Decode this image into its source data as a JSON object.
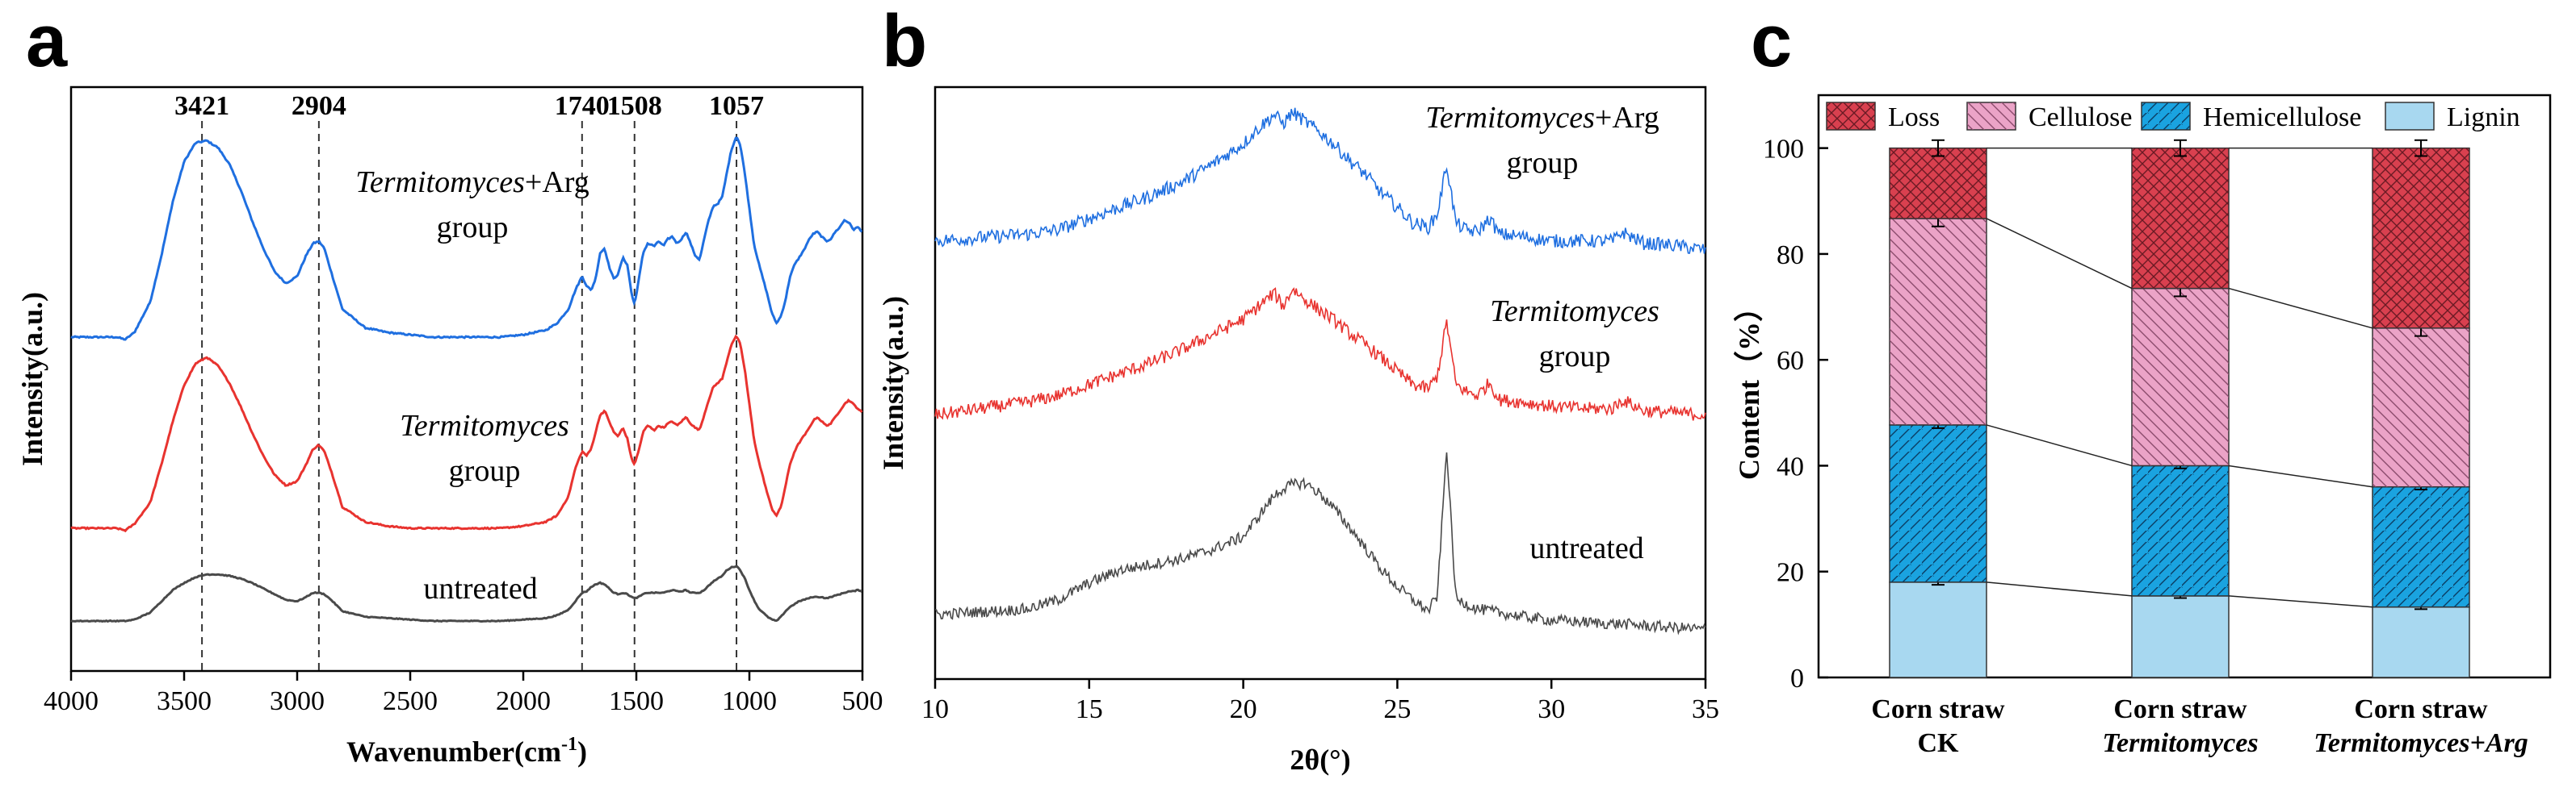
{
  "chart_data": [
    {
      "panel": "a",
      "type": "line",
      "xlabel": "Wavenumber(cm",
      "xlabel_sup": "-1",
      "xlabel_end": ")",
      "ylabel": "Intensity(a.u.)",
      "xlim": [
        4000,
        500
      ],
      "xticks": [
        4000,
        3500,
        3000,
        2500,
        2000,
        1500,
        1000,
        500
      ],
      "peaks": [
        3421,
        2904,
        1740,
        1508,
        1057
      ],
      "peak_labels": [
        "3421",
        "2904",
        "1740",
        "1508",
        "1057"
      ],
      "series": [
        {
          "name": "Termitomyces+Arg group",
          "label_italic": "Termitomyces",
          "label_rest": "+Arg",
          "label_line2": "group",
          "color": "#1f6fe0",
          "x": [
            4000,
            3900,
            3800,
            3760,
            3720,
            3650,
            3600,
            3550,
            3500,
            3450,
            3400,
            3350,
            3300,
            3250,
            3200,
            3150,
            3100,
            3050,
            3000,
            2960,
            2930,
            2904,
            2880,
            2850,
            2800,
            2700,
            2600,
            2500,
            2400,
            2300,
            2200,
            2100,
            2000,
            1900,
            1850,
            1800,
            1770,
            1740,
            1720,
            1700,
            1680,
            1660,
            1640,
            1620,
            1600,
            1580,
            1560,
            1540,
            1520,
            1508,
            1490,
            1470,
            1450,
            1420,
            1400,
            1380,
            1360,
            1340,
            1320,
            1300,
            1280,
            1260,
            1240,
            1220,
            1200,
            1180,
            1160,
            1140,
            1120,
            1100,
            1080,
            1057,
            1040,
            1020,
            1000,
            980,
            960,
            940,
            920,
            900,
            880,
            860,
            840,
            820,
            800,
            780,
            760,
            740,
            720,
            700,
            680,
            660,
            640,
            620,
            600,
            580,
            560,
            540,
            520,
            500
          ],
          "y": [
            0.0,
            0.0,
            0.0,
            -0.01,
            0.02,
            0.15,
            0.35,
            0.58,
            0.75,
            0.83,
            0.84,
            0.81,
            0.74,
            0.63,
            0.5,
            0.38,
            0.28,
            0.23,
            0.26,
            0.35,
            0.4,
            0.41,
            0.38,
            0.28,
            0.12,
            0.04,
            0.02,
            0.01,
            0.0,
            0.0,
            0.0,
            0.0,
            0.01,
            0.03,
            0.06,
            0.12,
            0.2,
            0.26,
            0.22,
            0.2,
            0.25,
            0.36,
            0.38,
            0.3,
            0.25,
            0.27,
            0.34,
            0.31,
            0.18,
            0.14,
            0.24,
            0.36,
            0.4,
            0.39,
            0.41,
            0.39,
            0.42,
            0.43,
            0.4,
            0.42,
            0.45,
            0.4,
            0.35,
            0.33,
            0.42,
            0.5,
            0.56,
            0.57,
            0.6,
            0.7,
            0.8,
            0.86,
            0.82,
            0.7,
            0.55,
            0.4,
            0.32,
            0.25,
            0.18,
            0.1,
            0.06,
            0.09,
            0.16,
            0.26,
            0.31,
            0.34,
            0.37,
            0.41,
            0.44,
            0.45,
            0.43,
            0.41,
            0.42,
            0.45,
            0.47,
            0.5,
            0.49,
            0.46,
            0.47,
            0.45
          ]
        },
        {
          "name": "Termitomyces group",
          "label_italic": "Termitomyces",
          "label_rest": "",
          "label_line2": "group",
          "color": "#e8332f",
          "x": [
            4000,
            3900,
            3800,
            3760,
            3720,
            3650,
            3600,
            3550,
            3500,
            3450,
            3400,
            3350,
            3300,
            3250,
            3200,
            3150,
            3100,
            3050,
            3000,
            2960,
            2930,
            2904,
            2880,
            2850,
            2800,
            2700,
            2600,
            2500,
            2400,
            2300,
            2200,
            2100,
            2000,
            1900,
            1850,
            1800,
            1770,
            1740,
            1720,
            1700,
            1680,
            1660,
            1640,
            1620,
            1600,
            1580,
            1560,
            1540,
            1520,
            1508,
            1490,
            1470,
            1450,
            1420,
            1400,
            1380,
            1360,
            1340,
            1320,
            1300,
            1280,
            1260,
            1240,
            1220,
            1200,
            1180,
            1160,
            1140,
            1120,
            1100,
            1080,
            1057,
            1040,
            1020,
            1000,
            980,
            960,
            940,
            920,
            900,
            880,
            860,
            840,
            820,
            800,
            780,
            760,
            740,
            720,
            700,
            680,
            660,
            640,
            620,
            600,
            580,
            560,
            540,
            520,
            500
          ],
          "y": [
            0.0,
            0.0,
            0.0,
            -0.01,
            0.02,
            0.12,
            0.3,
            0.5,
            0.67,
            0.77,
            0.8,
            0.76,
            0.68,
            0.57,
            0.45,
            0.34,
            0.25,
            0.2,
            0.22,
            0.3,
            0.37,
            0.39,
            0.36,
            0.27,
            0.1,
            0.03,
            0.01,
            0.0,
            0.0,
            0.0,
            0.0,
            0.0,
            0.01,
            0.03,
            0.06,
            0.15,
            0.28,
            0.36,
            0.34,
            0.37,
            0.45,
            0.53,
            0.55,
            0.5,
            0.45,
            0.43,
            0.47,
            0.42,
            0.32,
            0.3,
            0.36,
            0.45,
            0.48,
            0.46,
            0.48,
            0.47,
            0.49,
            0.5,
            0.48,
            0.5,
            0.52,
            0.49,
            0.47,
            0.46,
            0.53,
            0.6,
            0.66,
            0.68,
            0.7,
            0.78,
            0.86,
            0.9,
            0.86,
            0.74,
            0.58,
            0.42,
            0.32,
            0.24,
            0.16,
            0.09,
            0.06,
            0.1,
            0.2,
            0.3,
            0.36,
            0.4,
            0.43,
            0.46,
            0.5,
            0.52,
            0.5,
            0.48,
            0.49,
            0.52,
            0.55,
            0.58,
            0.6,
            0.58,
            0.56,
            0.54
          ]
        },
        {
          "name": "untreated",
          "label_italic": "",
          "label_rest": "untreated",
          "label_line2": "",
          "color": "#4a4a4a",
          "x": [
            4000,
            3900,
            3800,
            3760,
            3720,
            3650,
            3600,
            3550,
            3500,
            3450,
            3400,
            3350,
            3300,
            3250,
            3200,
            3150,
            3100,
            3050,
            3000,
            2960,
            2930,
            2904,
            2880,
            2850,
            2800,
            2700,
            2600,
            2500,
            2400,
            2300,
            2200,
            2100,
            2000,
            1900,
            1850,
            1800,
            1770,
            1740,
            1720,
            1700,
            1680,
            1660,
            1640,
            1620,
            1600,
            1580,
            1560,
            1540,
            1520,
            1508,
            1490,
            1470,
            1450,
            1420,
            1400,
            1380,
            1360,
            1340,
            1320,
            1300,
            1280,
            1260,
            1240,
            1220,
            1200,
            1180,
            1160,
            1140,
            1120,
            1100,
            1080,
            1057,
            1040,
            1020,
            1000,
            980,
            960,
            940,
            920,
            900,
            880,
            860,
            840,
            820,
            800,
            780,
            760,
            740,
            720,
            700,
            680,
            660,
            640,
            620,
            600,
            580,
            560,
            540,
            520,
            500
          ],
          "y": [
            0.0,
            0.0,
            0.0,
            0.0,
            0.01,
            0.06,
            0.14,
            0.22,
            0.27,
            0.31,
            0.33,
            0.33,
            0.32,
            0.3,
            0.27,
            0.23,
            0.19,
            0.15,
            0.14,
            0.17,
            0.2,
            0.2,
            0.19,
            0.15,
            0.07,
            0.03,
            0.02,
            0.01,
            0.0,
            0.0,
            0.0,
            0.0,
            0.01,
            0.02,
            0.04,
            0.08,
            0.14,
            0.2,
            0.21,
            0.24,
            0.26,
            0.27,
            0.26,
            0.23,
            0.2,
            0.19,
            0.2,
            0.19,
            0.17,
            0.16,
            0.17,
            0.19,
            0.2,
            0.2,
            0.2,
            0.2,
            0.21,
            0.22,
            0.21,
            0.21,
            0.22,
            0.2,
            0.2,
            0.2,
            0.22,
            0.25,
            0.28,
            0.3,
            0.32,
            0.36,
            0.38,
            0.39,
            0.36,
            0.3,
            0.22,
            0.15,
            0.09,
            0.06,
            0.03,
            0.01,
            0.0,
            0.03,
            0.07,
            0.1,
            0.12,
            0.14,
            0.15,
            0.16,
            0.17,
            0.17,
            0.17,
            0.16,
            0.17,
            0.18,
            0.19,
            0.2,
            0.21,
            0.21,
            0.22,
            0.21
          ]
        }
      ]
    },
    {
      "panel": "b",
      "type": "line",
      "xlabel": "2θ(°)",
      "ylabel": "Intensity(a.u.)",
      "xlim": [
        10,
        35
      ],
      "xticks": [
        10,
        15,
        20,
        25,
        30,
        35
      ],
      "series": [
        {
          "name": "Termitomyces+Arg group",
          "label_italic": "Termitomyces",
          "label_rest": "+Arg",
          "label_line2": "group",
          "color": "#1f6fe0",
          "x": [
            10,
            11,
            12,
            13,
            14,
            15,
            16,
            17,
            18,
            19,
            20,
            20.5,
            21,
            21.3,
            21.6,
            22,
            22.5,
            23,
            23.5,
            24,
            24.5,
            25,
            25.5,
            26,
            26.3,
            26.6,
            26.9,
            27.2,
            27.6,
            28,
            28.3,
            29,
            30,
            31,
            32,
            32.3,
            33,
            34,
            35
          ],
          "y": [
            0.04,
            0.05,
            0.06,
            0.07,
            0.09,
            0.14,
            0.19,
            0.24,
            0.3,
            0.38,
            0.47,
            0.54,
            0.6,
            0.56,
            0.61,
            0.57,
            0.52,
            0.46,
            0.39,
            0.33,
            0.25,
            0.19,
            0.12,
            0.1,
            0.16,
            0.38,
            0.12,
            0.09,
            0.08,
            0.14,
            0.07,
            0.06,
            0.04,
            0.04,
            0.04,
            0.08,
            0.03,
            0.02,
            0.0
          ]
        },
        {
          "name": "Termitomyces group",
          "label_italic": "Termitomyces",
          "label_rest": "",
          "label_line2": "group",
          "color": "#e8332f",
          "x": [
            10,
            11,
            12,
            13,
            14,
            15,
            16,
            17,
            18,
            19,
            20,
            20.5,
            21,
            21.3,
            21.6,
            22,
            22.5,
            23,
            23.5,
            24,
            24.5,
            25,
            25.5,
            26,
            26.3,
            26.6,
            26.9,
            27.2,
            27.6,
            28,
            28.3,
            29,
            30,
            31,
            32,
            32.3,
            33,
            34,
            35
          ],
          "y": [
            0.02,
            0.04,
            0.06,
            0.08,
            0.11,
            0.16,
            0.21,
            0.26,
            0.32,
            0.39,
            0.46,
            0.52,
            0.58,
            0.52,
            0.6,
            0.55,
            0.5,
            0.45,
            0.39,
            0.34,
            0.28,
            0.22,
            0.16,
            0.14,
            0.2,
            0.45,
            0.16,
            0.13,
            0.11,
            0.17,
            0.09,
            0.08,
            0.06,
            0.05,
            0.05,
            0.09,
            0.04,
            0.03,
            0.02
          ]
        },
        {
          "name": "untreated",
          "label_italic": "",
          "label_rest": "untreated",
          "label_line2": "",
          "color": "#4a4a4a",
          "x": [
            10,
            11,
            12,
            13,
            14,
            15,
            16,
            17,
            18,
            19,
            20,
            20.5,
            21,
            21.3,
            21.6,
            22,
            22.5,
            23,
            23.5,
            24,
            24.5,
            25,
            25.5,
            26,
            26.3,
            26.6,
            26.9,
            27.2,
            27.6,
            28,
            28.3,
            29,
            30,
            31,
            32,
            32.3,
            33,
            34,
            35
          ],
          "y": [
            0.1,
            0.11,
            0.12,
            0.13,
            0.18,
            0.27,
            0.34,
            0.37,
            0.4,
            0.45,
            0.52,
            0.63,
            0.74,
            0.78,
            0.8,
            0.81,
            0.75,
            0.66,
            0.56,
            0.45,
            0.34,
            0.25,
            0.18,
            0.12,
            0.2,
            1.0,
            0.18,
            0.16,
            0.13,
            0.12,
            0.11,
            0.09,
            0.07,
            0.06,
            0.05,
            0.05,
            0.04,
            0.03,
            0.02
          ]
        }
      ]
    },
    {
      "panel": "c",
      "type": "bar",
      "stacked": true,
      "ylabel": "Content（%）",
      "ylim": [
        0,
        110
      ],
      "yticks": [
        0,
        20,
        40,
        60,
        80,
        100
      ],
      "categories": [
        {
          "line1": "Corn straw",
          "line2": "CK",
          "line2_italic": false
        },
        {
          "line1": "Corn straw",
          "line2": "Termitomyces",
          "line2_italic": true
        },
        {
          "line1": "Corn straw",
          "line2": "Termitomyces+Arg",
          "line2_italic": true
        }
      ],
      "series": [
        {
          "name": "Lignin",
          "values": [
            18,
            15.4,
            13.3
          ],
          "errors": [
            0.5,
            0.4,
            0.4
          ],
          "color": "#a8d8f0",
          "pattern": "none"
        },
        {
          "name": "Hemicellulose",
          "values": [
            29.7,
            24.6,
            22.7
          ],
          "errors": [
            0.6,
            0.5,
            0.5
          ],
          "color": "#1aa3e0",
          "pattern": "diag-right"
        },
        {
          "name": "Cellulose",
          "values": [
            39,
            33.5,
            30
          ],
          "errors": [
            1.5,
            1.5,
            1.5
          ],
          "color": "#eba3c7",
          "pattern": "diag-left"
        },
        {
          "name": "Loss",
          "values": [
            13.3,
            26.5,
            34
          ],
          "errors": [
            1.5,
            1.5,
            1.5
          ],
          "color": "#d9404f",
          "pattern": "cross"
        }
      ],
      "legend_order": [
        "Loss",
        "Cellulose",
        "Hemicellulose",
        "Lignin"
      ],
      "legend_position": "top"
    }
  ]
}
